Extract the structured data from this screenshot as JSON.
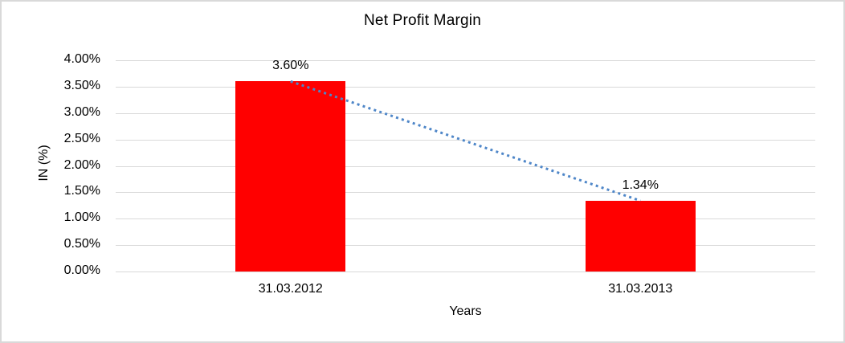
{
  "chart": {
    "title": "Net Profit Margin",
    "y_axis_title": "IN (%)",
    "x_axis_title": "Years"
  },
  "chart_data": {
    "type": "bar",
    "title": "Net Profit Margin",
    "xlabel": "Years",
    "ylabel": "IN (%)",
    "categories": [
      "31.03.2012",
      "31.03.2013"
    ],
    "values": [
      3.6,
      1.34
    ],
    "data_labels": [
      "3.60%",
      "1.34%"
    ],
    "y_ticks": [
      "4.00%",
      "3.50%",
      "3.00%",
      "2.50%",
      "2.00%",
      "1.50%",
      "1.00%",
      "0.50%",
      "0.00%"
    ],
    "ylim": [
      0,
      4
    ],
    "grid": true,
    "legend": false,
    "bar_color": "#FF0000",
    "gridline_color": "#D9D9D9",
    "border_color": "#D9D9D9",
    "trendline": {
      "style": "dotted",
      "color": "#4E86C8",
      "from_value": 3.6,
      "to_value": 1.34
    }
  }
}
